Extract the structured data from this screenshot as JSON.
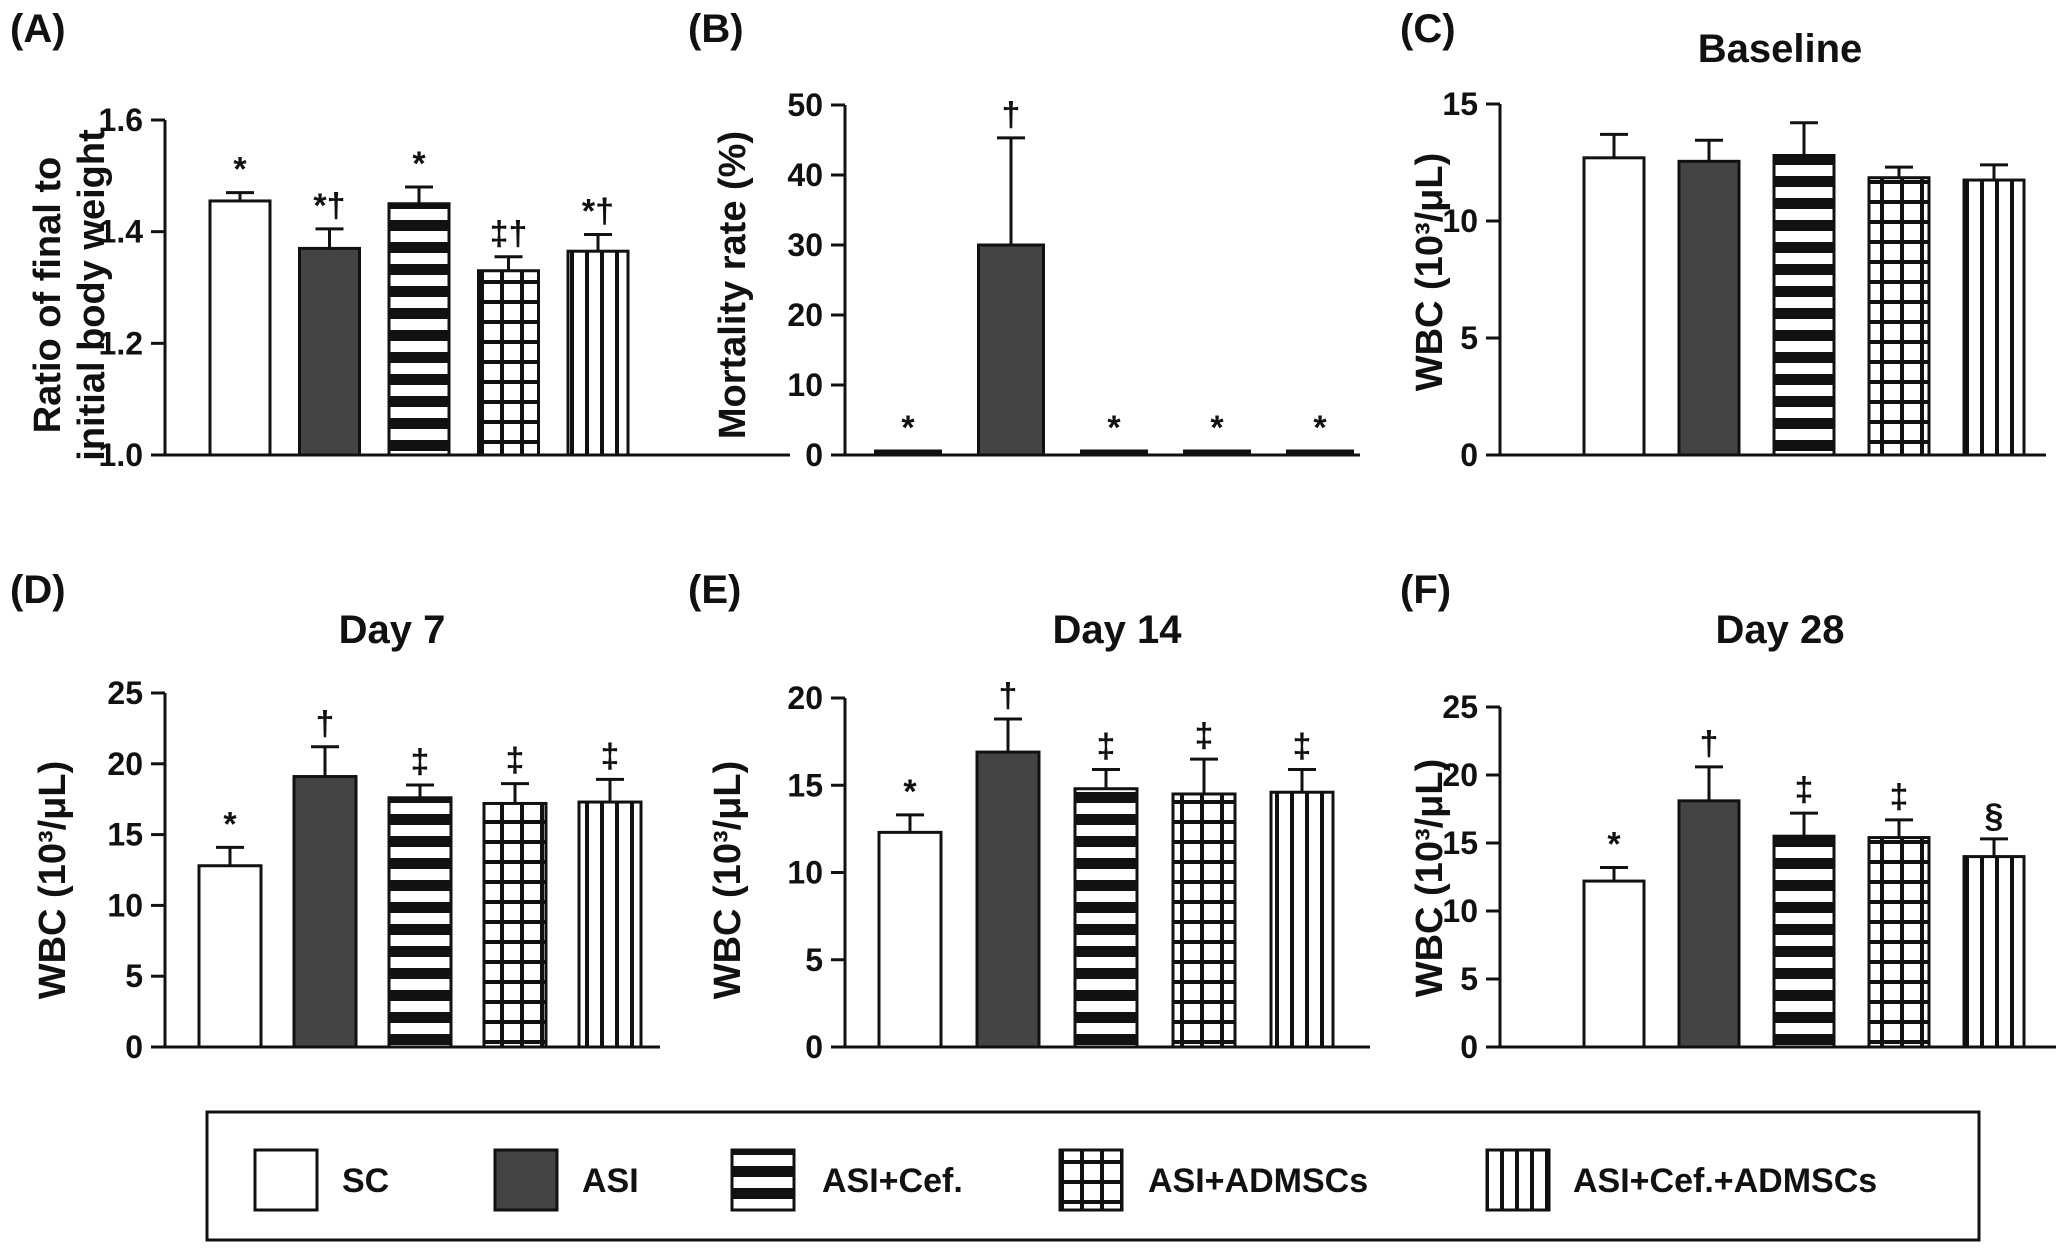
{
  "colors": {
    "ink": "#111111",
    "asi_fill": "#444444",
    "background": "#ffffff"
  },
  "legend": [
    {
      "key": "sc",
      "label": "SC",
      "pattern": "white"
    },
    {
      "key": "asi",
      "label": "ASI",
      "pattern": "black"
    },
    {
      "key": "cef",
      "label": "ASI+Cef.",
      "pattern": "hstripes"
    },
    {
      "key": "admsc",
      "label": "ASI+ADMSCs",
      "pattern": "grid"
    },
    {
      "key": "cef_admsc",
      "label": "ASI+Cef.+ADMSCs",
      "pattern": "vstripes"
    }
  ],
  "chart_data": [
    {
      "id": "A",
      "panel_label": "(A)",
      "type": "bar",
      "title": "",
      "ylabel_lines": [
        "Ratio of final to",
        "initial body weight"
      ],
      "ylim": [
        1.0,
        1.6
      ],
      "yticks": [
        1.0,
        1.2,
        1.4,
        1.6
      ],
      "ytick_labels": [
        "1.0",
        "1.2",
        "1.4",
        "1.6"
      ],
      "categories": [
        "SC",
        "ASI",
        "ASI+Cef.",
        "ASI+ADMSCs",
        "ASI+Cef.+ADMSCs"
      ],
      "values": [
        1.455,
        1.37,
        1.45,
        1.33,
        1.365
      ],
      "errors": [
        0.015,
        0.035,
        0.03,
        0.025,
        0.03
      ],
      "annotations": [
        "*",
        "*†",
        "*",
        "‡†",
        "*†"
      ]
    },
    {
      "id": "B",
      "panel_label": "(B)",
      "type": "bar",
      "title": "",
      "ylabel_lines": [
        "Mortality rate (%)"
      ],
      "ylim": [
        0,
        50
      ],
      "yticks": [
        0,
        10,
        20,
        30,
        40,
        50
      ],
      "ytick_labels": [
        "0",
        "10",
        "20",
        "30",
        "40",
        "50"
      ],
      "categories": [
        "SC",
        "ASI",
        "ASI+Cef.",
        "ASI+ADMSCs",
        "ASI+Cef.+ADMSCs"
      ],
      "values": [
        0,
        30,
        0,
        0,
        0
      ],
      "errors": [
        0,
        15.3,
        0,
        0,
        0
      ],
      "annotations": [
        "*",
        "†",
        "*",
        "*",
        "*"
      ]
    },
    {
      "id": "C",
      "panel_label": "(C)",
      "type": "bar",
      "title": "Baseline",
      "ylabel_lines": [
        "WBC (10³/μL)"
      ],
      "ylim": [
        0,
        15
      ],
      "yticks": [
        0,
        5,
        10,
        15
      ],
      "ytick_labels": [
        "0",
        "5",
        "10",
        "15"
      ],
      "categories": [
        "SC",
        "ASI",
        "ASI+Cef.",
        "ASI+ADMSCs",
        "ASI+Cef.+ADMSCs"
      ],
      "values": [
        12.7,
        12.55,
        12.8,
        11.85,
        11.75
      ],
      "errors": [
        1.0,
        0.9,
        1.4,
        0.45,
        0.65
      ],
      "annotations": [
        "",
        "",
        "",
        "",
        ""
      ]
    },
    {
      "id": "D",
      "panel_label": "(D)",
      "type": "bar",
      "title": "Day 7",
      "ylabel_lines": [
        "WBC (10³/μL)"
      ],
      "ylim": [
        0,
        25
      ],
      "yticks": [
        0,
        5,
        10,
        15,
        20,
        25
      ],
      "ytick_labels": [
        "0",
        "5",
        "10",
        "15",
        "20",
        "25"
      ],
      "categories": [
        "SC",
        "ASI",
        "ASI+Cef.",
        "ASI+ADMSCs",
        "ASI+Cef.+ADMSCs"
      ],
      "values": [
        12.8,
        19.1,
        17.6,
        17.2,
        17.3
      ],
      "errors": [
        1.3,
        2.1,
        0.9,
        1.4,
        1.6
      ],
      "annotations": [
        "*",
        "†",
        "‡",
        "‡",
        "‡"
      ]
    },
    {
      "id": "E",
      "panel_label": "(E)",
      "type": "bar",
      "title": "Day 14",
      "ylabel_lines": [
        "WBC (10³/μL)"
      ],
      "ylim": [
        0,
        20
      ],
      "yticks": [
        0,
        5,
        10,
        15,
        20
      ],
      "ytick_labels": [
        "0",
        "5",
        "10",
        "15",
        "20"
      ],
      "categories": [
        "SC",
        "ASI",
        "ASI+Cef.",
        "ASI+ADMSCs",
        "ASI+Cef.+ADMSCs"
      ],
      "values": [
        12.3,
        16.9,
        14.8,
        14.5,
        14.6
      ],
      "errors": [
        1.0,
        1.9,
        1.1,
        2.0,
        1.3
      ],
      "annotations": [
        "*",
        "†",
        "‡",
        "‡",
        "‡"
      ]
    },
    {
      "id": "F",
      "panel_label": "(F)",
      "type": "bar",
      "title": "Day 28",
      "ylabel_lines": [
        "WBC (10³/μL)"
      ],
      "ylim": [
        0,
        25
      ],
      "yticks": [
        0,
        5,
        10,
        15,
        20,
        25
      ],
      "ytick_labels": [
        "0",
        "5",
        "10",
        "15",
        "20",
        "25"
      ],
      "categories": [
        "SC",
        "ASI",
        "ASI+Cef.",
        "ASI+ADMSCs",
        "ASI+Cef.+ADMSCs"
      ],
      "values": [
        12.2,
        18.1,
        15.5,
        15.4,
        14.0
      ],
      "errors": [
        1.0,
        2.5,
        1.7,
        1.3,
        1.3
      ],
      "annotations": [
        "*",
        "†",
        "‡",
        "‡",
        "§"
      ]
    }
  ]
}
